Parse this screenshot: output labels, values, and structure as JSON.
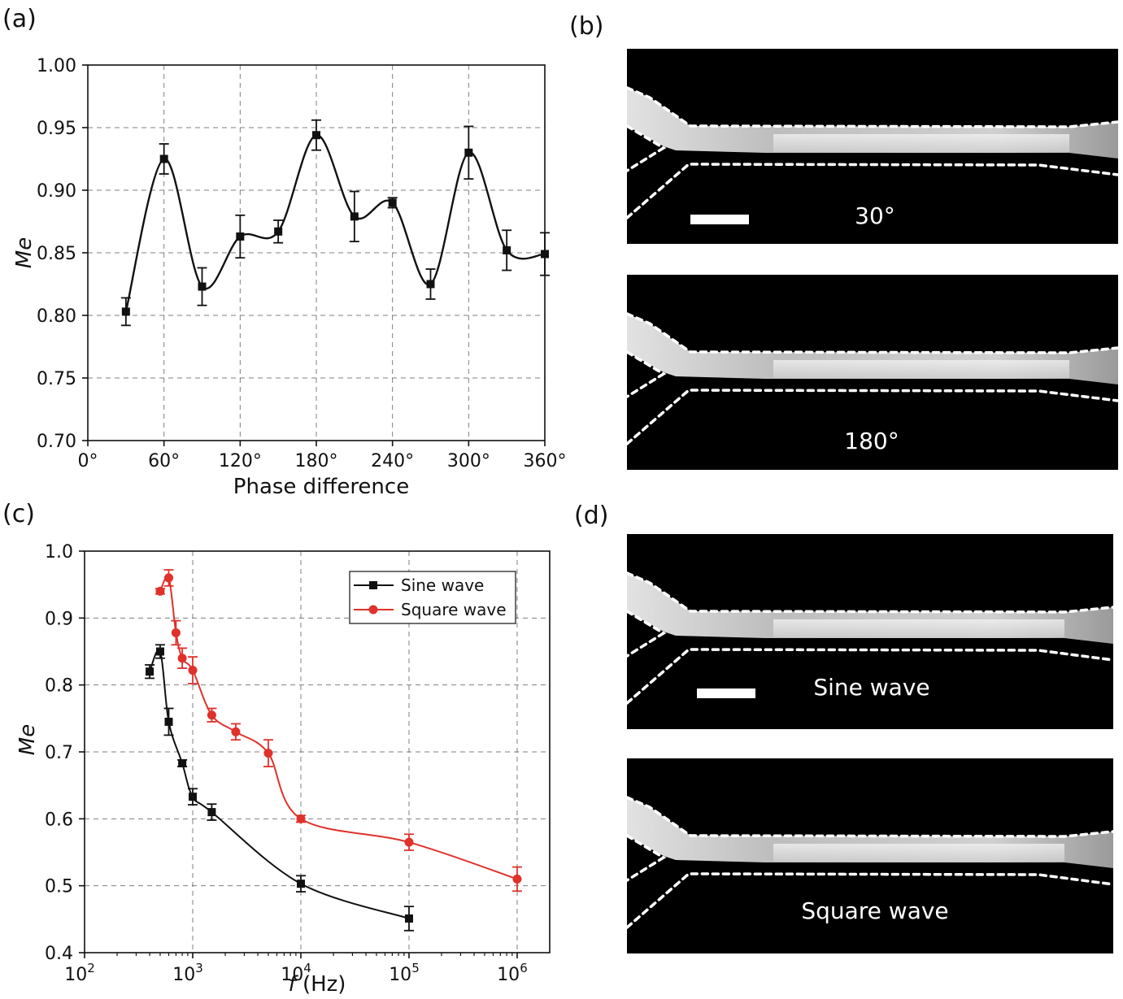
{
  "panels": {
    "a": "(a)",
    "b": "(b)",
    "c": "(c)",
    "d": "(d)"
  },
  "chart_data": [
    {
      "id": "a",
      "type": "line",
      "xlabel": "Phase difference",
      "ylabel": "Me",
      "xlim": [
        0,
        360
      ],
      "ylim": [
        0.7,
        1.0
      ],
      "x_ticks": [
        0,
        60,
        120,
        180,
        240,
        300,
        360
      ],
      "x_tick_labels": [
        "0°",
        "60°",
        "120°",
        "180°",
        "240°",
        "300°",
        "360°"
      ],
      "y_ticks": [
        0.7,
        0.75,
        0.8,
        0.85,
        0.9,
        0.95,
        1.0
      ],
      "y_tick_labels": [
        "0.70",
        "0.75",
        "0.80",
        "0.85",
        "0.90",
        "0.95",
        "1.00"
      ],
      "grid": true,
      "series": [
        {
          "color": "#111111",
          "marker": "square",
          "x": [
            30,
            60,
            90,
            120,
            150,
            180,
            210,
            240,
            270,
            300,
            330,
            360
          ],
          "y": [
            0.803,
            0.925,
            0.823,
            0.863,
            0.867,
            0.944,
            0.879,
            0.89,
            0.825,
            0.93,
            0.852,
            0.849
          ],
          "err": [
            0.011,
            0.012,
            0.015,
            0.017,
            0.009,
            0.012,
            0.02,
            0.004,
            0.012,
            0.021,
            0.016,
            0.017
          ]
        }
      ]
    },
    {
      "id": "c",
      "type": "line",
      "xlabel_var": "f",
      "xlabel_unit": " (Hz)",
      "ylabel": "Me",
      "x_scale": "log",
      "xlim": [
        100,
        2000000
      ],
      "ylim": [
        0.4,
        1.0
      ],
      "x_ticks": [
        100,
        1000,
        10000,
        100000,
        1000000
      ],
      "x_tick_base": [
        "10",
        "10",
        "10",
        "10",
        "10"
      ],
      "x_tick_exp": [
        "2",
        "3",
        "4",
        "5",
        "6"
      ],
      "y_ticks": [
        0.4,
        0.5,
        0.6,
        0.7,
        0.8,
        0.9,
        1.0
      ],
      "y_tick_labels": [
        "0.4",
        "0.5",
        "0.6",
        "0.7",
        "0.8",
        "0.9",
        "1.0"
      ],
      "grid": true,
      "legend_position": "top-right",
      "series": [
        {
          "name": "Sine wave",
          "color": "#111111",
          "marker": "square",
          "x": [
            400,
            500,
            600,
            800,
            1000,
            1500,
            10000,
            100000
          ],
          "y": [
            0.82,
            0.85,
            0.745,
            0.683,
            0.633,
            0.61,
            0.503,
            0.451
          ],
          "err": [
            0.01,
            0.01,
            0.02,
            0.005,
            0.012,
            0.012,
            0.012,
            0.018
          ]
        },
        {
          "name": "Square wave",
          "color": "#e0312b",
          "marker": "circle",
          "x": [
            500,
            600,
            700,
            800,
            1000,
            1500,
            2500,
            5000,
            10000,
            100000,
            1000000
          ],
          "y": [
            0.94,
            0.96,
            0.878,
            0.84,
            0.822,
            0.755,
            0.73,
            0.698,
            0.6,
            0.565,
            0.51
          ],
          "err": [
            0.004,
            0.012,
            0.018,
            0.015,
            0.02,
            0.01,
            0.012,
            0.02,
            0.005,
            0.012,
            0.018
          ]
        }
      ]
    }
  ],
  "micrographs": {
    "b_top_label": "30°",
    "b_bottom_label": "180°",
    "d_top_label": "Sine wave",
    "d_bottom_label": "Square wave"
  }
}
